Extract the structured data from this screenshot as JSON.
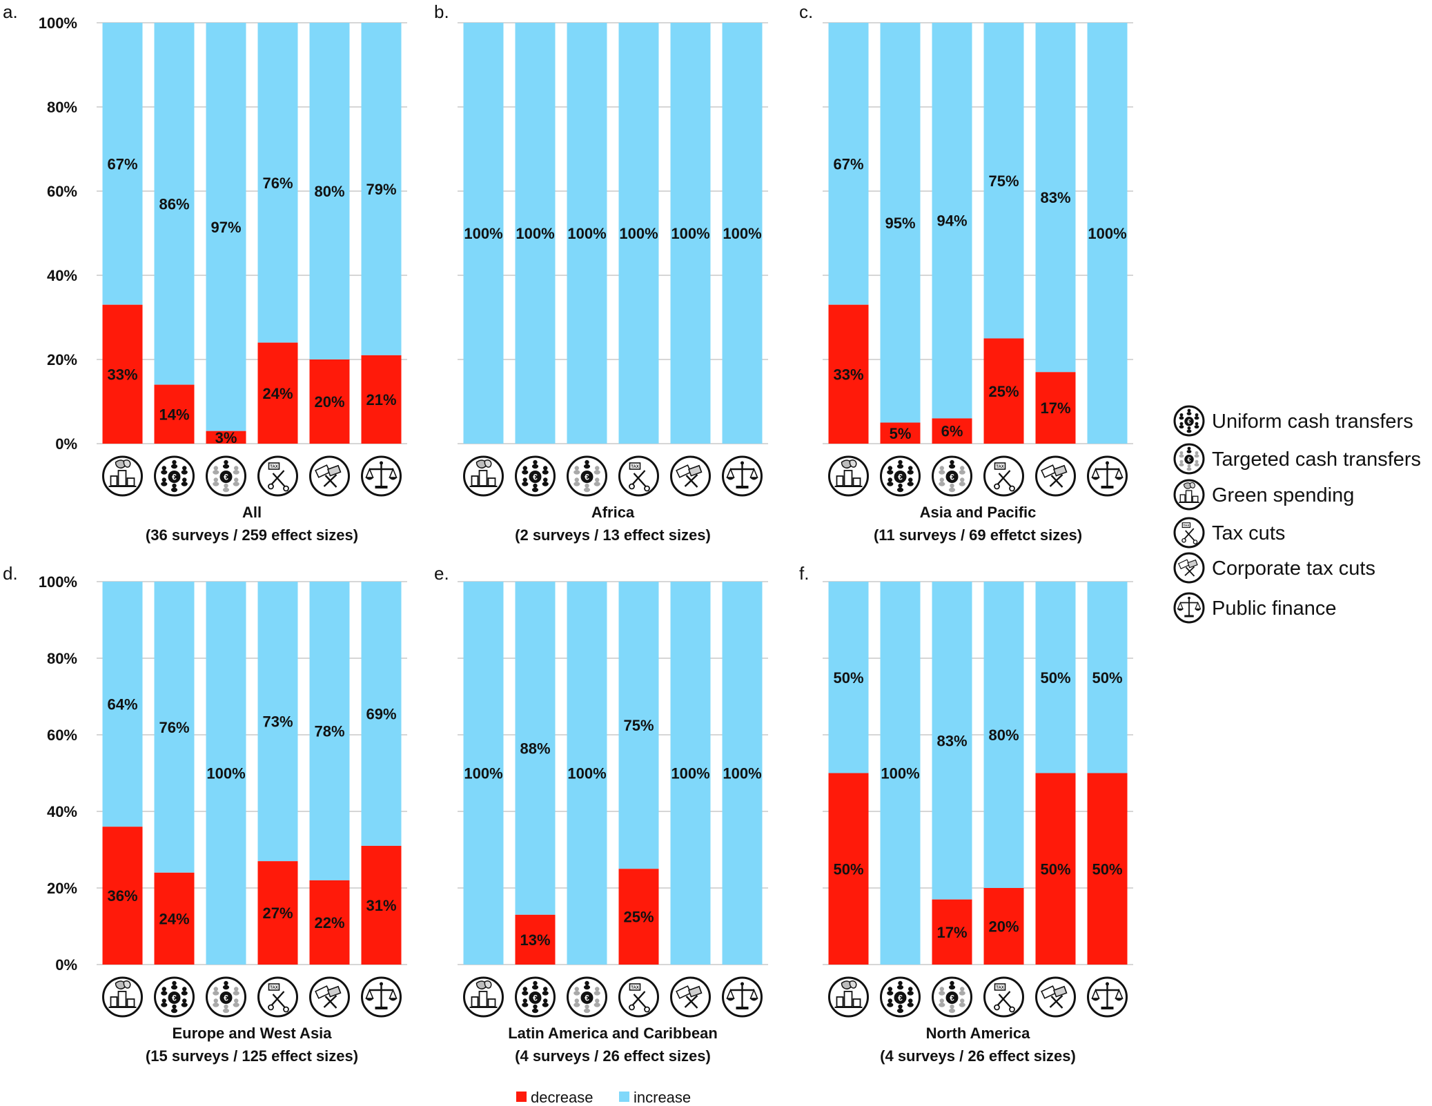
{
  "chart_data": {
    "type": "bar",
    "stacked": true,
    "ylim": [
      0,
      100
    ],
    "yticks": [
      "0%",
      "20%",
      "40%",
      "60%",
      "80%",
      "100%"
    ],
    "grid": true,
    "categories": [
      "Green spending",
      "Uniform cash transfers",
      "Targeted cash transfers",
      "Tax cuts",
      "Corporate tax cuts",
      "Public finance"
    ],
    "category_icons": [
      "green-spending-icon",
      "uniform-cash-transfers-icon",
      "targeted-cash-transfers-icon",
      "tax-cuts-icon",
      "corporate-tax-cuts-icon",
      "public-finance-icon"
    ],
    "series_names": [
      "decrease",
      "increase"
    ],
    "colors": {
      "decrease": "#ff1a0a",
      "increase": "#80d8fa",
      "grid": "#d6d6d6"
    },
    "panels": [
      {
        "letter": "a.",
        "title": "All",
        "subtitle": "(36 surveys / 259 effect sizes)",
        "decrease": [
          33,
          14,
          3,
          24,
          20,
          21
        ],
        "increase": [
          67,
          86,
          97,
          76,
          80,
          79
        ],
        "decrease_labels": [
          "33%",
          "14%",
          "3%",
          "24%",
          "20%",
          "21%"
        ],
        "increase_labels": [
          "67%",
          "86%",
          "97%",
          "76%",
          "80%",
          "79%"
        ]
      },
      {
        "letter": "b.",
        "title": "Africa",
        "subtitle": "(2 surveys / 13 effect sizes)",
        "decrease": [
          0,
          0,
          0,
          0,
          0,
          0
        ],
        "increase": [
          100,
          100,
          100,
          100,
          100,
          100
        ],
        "decrease_labels": [
          "",
          "",
          "",
          "",
          "",
          ""
        ],
        "increase_labels": [
          "100%",
          "100%",
          "100%",
          "100%",
          "100%",
          "100%"
        ]
      },
      {
        "letter": "c.",
        "title": "Asia and Pacific",
        "subtitle": "(11 surveys / 69 effetct sizes)",
        "decrease": [
          33,
          5,
          6,
          25,
          17,
          0
        ],
        "increase": [
          67,
          95,
          94,
          75,
          83,
          100
        ],
        "decrease_labels": [
          "33%",
          "5%",
          "6%",
          "25%",
          "17%",
          ""
        ],
        "increase_labels": [
          "67%",
          "95%",
          "94%",
          "75%",
          "83%",
          "100%"
        ]
      },
      {
        "letter": "d.",
        "title": "Europe and West Asia",
        "subtitle": "(15 surveys / 125 effect sizes)",
        "decrease": [
          36,
          24,
          0,
          27,
          22,
          31
        ],
        "increase": [
          64,
          76,
          100,
          73,
          78,
          69
        ],
        "decrease_labels": [
          "36%",
          "24%",
          "",
          "27%",
          "22%",
          "31%"
        ],
        "increase_labels": [
          "64%",
          "76%",
          "100%",
          "73%",
          "78%",
          "69%"
        ]
      },
      {
        "letter": "e.",
        "title": "Latin America and Caribbean",
        "subtitle": "(4 surveys / 26 effect sizes)",
        "decrease": [
          0,
          13,
          0,
          25,
          0,
          0
        ],
        "increase": [
          100,
          88,
          100,
          75,
          100,
          100
        ],
        "decrease_labels": [
          "",
          "13%",
          "",
          "25%",
          "",
          ""
        ],
        "increase_labels": [
          "100%",
          "88%",
          "100%",
          "75%",
          "100%",
          "100%"
        ]
      },
      {
        "letter": "f.",
        "title": "North America",
        "subtitle": "(4 surveys / 26 effect sizes)",
        "decrease": [
          50,
          0,
          17,
          20,
          50,
          50
        ],
        "increase": [
          50,
          100,
          83,
          80,
          50,
          50
        ],
        "decrease_labels": [
          "50%",
          "",
          "17%",
          "20%",
          "50%",
          "50%"
        ],
        "increase_labels": [
          "50%",
          "100%",
          "83%",
          "80%",
          "50%",
          "50%"
        ]
      }
    ],
    "legend": {
      "placement": "right",
      "items": [
        {
          "label": "Uniform cash transfers",
          "icon": "uniform-cash-transfers-icon"
        },
        {
          "label": "Targeted cash transfers",
          "icon": "targeted-cash-transfers-icon"
        },
        {
          "label": "Green spending",
          "icon": "green-spending-icon"
        },
        {
          "label": "Tax cuts",
          "icon": "tax-cuts-icon"
        },
        {
          "label": "Corporate tax cuts",
          "icon": "corporate-tax-cuts-icon"
        },
        {
          "label": "Public finance",
          "icon": "public-finance-icon"
        }
      ]
    },
    "series_legend": {
      "placement": "bottom",
      "items": [
        "decrease",
        "increase"
      ]
    }
  }
}
